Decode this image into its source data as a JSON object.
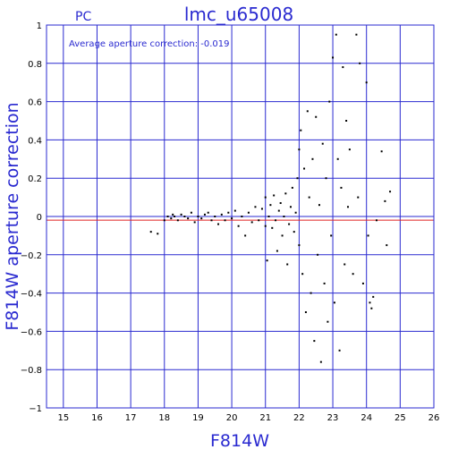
{
  "chart_data": {
    "type": "scatter",
    "title": "lmc_u65008",
    "corner_label": "PC",
    "annotation": "Average aperture correction: -0.019",
    "xlabel": "F814W",
    "ylabel": "F814W aperture correction",
    "xlim": [
      14.5,
      26
    ],
    "ylim": [
      -1,
      1
    ],
    "x_ticks": [
      15,
      16,
      17,
      18,
      19,
      20,
      21,
      22,
      23,
      24,
      25,
      26
    ],
    "y_ticks": [
      -1,
      -0.8,
      -0.6,
      -0.4,
      -0.2,
      0,
      0.2,
      0.4,
      0.6,
      0.8,
      1
    ],
    "x_tick_labels": [
      "15",
      "16",
      "17",
      "18",
      "19",
      "20",
      "21",
      "22",
      "23",
      "24",
      "25",
      "26"
    ],
    "y_tick_labels": [
      "−1",
      "−0.8",
      "−0.6",
      "−0.4",
      "−0.2",
      "0",
      "0.2",
      "0.4",
      "0.6",
      "0.8",
      "1"
    ],
    "grid": true,
    "reference_lines": [
      {
        "y": 0,
        "color": "#2a2ad0"
      },
      {
        "y": -0.019,
        "color": "#e02020"
      }
    ],
    "colors": {
      "axes": "#2a2ad0",
      "points": "#000000",
      "mean_line": "#e02020"
    },
    "points": [
      [
        17.6,
        -0.08
      ],
      [
        17.8,
        -0.09
      ],
      [
        18.0,
        -0.02
      ],
      [
        18.1,
        0.0
      ],
      [
        18.2,
        -0.01
      ],
      [
        18.25,
        0.01
      ],
      [
        18.3,
        0.0
      ],
      [
        18.4,
        -0.02
      ],
      [
        18.5,
        0.01
      ],
      [
        18.6,
        0.0
      ],
      [
        18.7,
        -0.01
      ],
      [
        18.8,
        0.02
      ],
      [
        18.9,
        -0.03
      ],
      [
        19.0,
        0.0
      ],
      [
        19.1,
        -0.01
      ],
      [
        19.2,
        0.01
      ],
      [
        19.3,
        0.02
      ],
      [
        19.4,
        -0.02
      ],
      [
        19.5,
        0.0
      ],
      [
        19.6,
        -0.04
      ],
      [
        19.7,
        0.01
      ],
      [
        19.8,
        -0.02
      ],
      [
        19.9,
        0.02
      ],
      [
        20.0,
        -0.01
      ],
      [
        20.1,
        0.03
      ],
      [
        20.2,
        -0.05
      ],
      [
        20.3,
        0.0
      ],
      [
        20.4,
        -0.1
      ],
      [
        20.5,
        0.02
      ],
      [
        20.6,
        -0.03
      ],
      [
        20.7,
        0.05
      ],
      [
        20.8,
        -0.02
      ],
      [
        20.9,
        0.04
      ],
      [
        21.0,
        -0.05
      ],
      [
        21.0,
        0.1
      ],
      [
        21.05,
        -0.23
      ],
      [
        21.1,
        0.0
      ],
      [
        21.15,
        0.06
      ],
      [
        21.2,
        -0.06
      ],
      [
        21.25,
        0.11
      ],
      [
        21.3,
        -0.02
      ],
      [
        21.35,
        -0.18
      ],
      [
        21.4,
        0.03
      ],
      [
        21.45,
        0.07
      ],
      [
        21.5,
        -0.1
      ],
      [
        21.55,
        0.0
      ],
      [
        21.6,
        0.12
      ],
      [
        21.65,
        -0.25
      ],
      [
        21.7,
        -0.04
      ],
      [
        21.75,
        0.05
      ],
      [
        21.8,
        0.15
      ],
      [
        21.85,
        -0.08
      ],
      [
        21.9,
        0.02
      ],
      [
        21.95,
        0.2
      ],
      [
        22.0,
        0.35
      ],
      [
        22.0,
        -0.15
      ],
      [
        22.05,
        0.45
      ],
      [
        22.1,
        -0.3
      ],
      [
        22.15,
        0.25
      ],
      [
        22.2,
        -0.5
      ],
      [
        22.25,
        0.55
      ],
      [
        22.3,
        0.1
      ],
      [
        22.35,
        -0.4
      ],
      [
        22.4,
        0.3
      ],
      [
        22.45,
        -0.65
      ],
      [
        22.5,
        0.52
      ],
      [
        22.55,
        -0.2
      ],
      [
        22.6,
        0.06
      ],
      [
        22.65,
        -0.76
      ],
      [
        22.7,
        0.38
      ],
      [
        22.75,
        -0.35
      ],
      [
        22.8,
        0.2
      ],
      [
        22.85,
        -0.55
      ],
      [
        22.9,
        0.6
      ],
      [
        22.95,
        -0.1
      ],
      [
        23.0,
        0.83
      ],
      [
        23.05,
        -0.45
      ],
      [
        23.1,
        0.95
      ],
      [
        23.15,
        0.3
      ],
      [
        23.2,
        -0.7
      ],
      [
        23.25,
        0.15
      ],
      [
        23.3,
        0.78
      ],
      [
        23.35,
        -0.25
      ],
      [
        23.4,
        0.5
      ],
      [
        23.45,
        0.05
      ],
      [
        23.5,
        0.35
      ],
      [
        23.6,
        -0.3
      ],
      [
        23.7,
        0.95
      ],
      [
        23.75,
        0.1
      ],
      [
        23.8,
        0.8
      ],
      [
        23.9,
        -0.35
      ],
      [
        24.0,
        0.7
      ],
      [
        24.05,
        -0.1
      ],
      [
        24.1,
        -0.45
      ],
      [
        24.2,
        -0.42
      ],
      [
        24.3,
        -0.02
      ],
      [
        24.45,
        0.34
      ],
      [
        24.55,
        0.08
      ],
      [
        24.6,
        -0.15
      ],
      [
        24.7,
        0.13
      ],
      [
        24.15,
        -0.48
      ]
    ]
  }
}
